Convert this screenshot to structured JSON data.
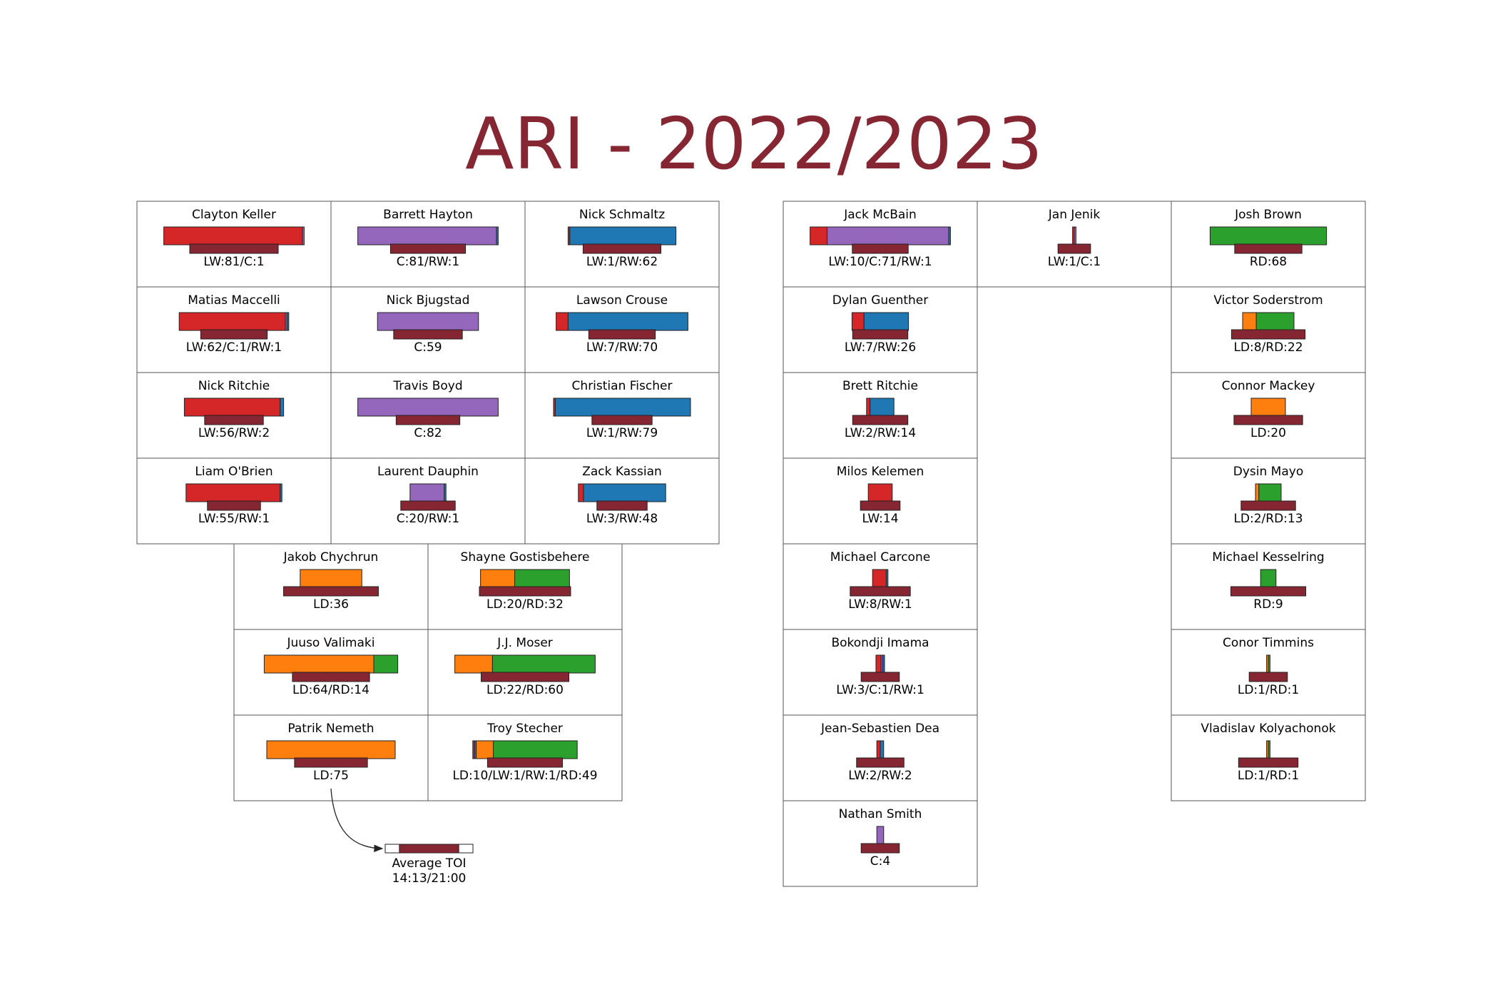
{
  "title": "ARI - 2022/2023",
  "colors": {
    "title": "#862633",
    "toi": "#862633",
    "LW": "#d62728",
    "C": "#9467bd",
    "RW": "#1f77b4",
    "LD": "#ff7f0e",
    "RD": "#2ca02c"
  },
  "legend": {
    "label": "Average TOI",
    "value": "14:13/21:00"
  },
  "chart_data": {
    "type": "bar",
    "title": "ARI - 2022/2023",
    "position_order": [
      "LW",
      "C",
      "RW",
      "LD",
      "RD"
    ],
    "toi_scale_max": "21:00",
    "groups": [
      {
        "name": "forwards",
        "rows": [
          [
            {
              "name": "Clayton Keller",
              "label": "LW:81/C:1",
              "counts": {
                "LW": 81,
                "C": 1
              },
              "toi": "20:50"
            },
            {
              "name": "Barrett Hayton",
              "label": "C:81/RW:1",
              "counts": {
                "C": 81,
                "RW": 1
              },
              "toi": "17:40"
            },
            {
              "name": "Nick Schmaltz",
              "label": "LW:1/RW:62",
              "counts": {
                "LW": 1,
                "RW": 62
              },
              "toi": "18:20"
            }
          ],
          [
            {
              "name": "Matias Maccelli",
              "label": "LW:62/C:1/RW:1",
              "counts": {
                "LW": 62,
                "C": 1,
                "RW": 1
              },
              "toi": "15:40"
            },
            {
              "name": "Nick Bjugstad",
              "label": "C:59",
              "counts": {
                "C": 59
              },
              "toi": "16:10"
            },
            {
              "name": "Lawson Crouse",
              "label": "LW:7/RW:70",
              "counts": {
                "LW": 7,
                "RW": 70
              },
              "toi": "15:40"
            }
          ],
          [
            {
              "name": "Nick Ritchie",
              "label": "LW:56/RW:2",
              "counts": {
                "LW": 56,
                "RW": 2
              },
              "toi": "13:50"
            },
            {
              "name": "Travis Boyd",
              "label": "C:82",
              "counts": {
                "C": 82
              },
              "toi": "15:00"
            },
            {
              "name": "Christian Fischer",
              "label": "LW:1/RW:79",
              "counts": {
                "LW": 1,
                "RW": 79
              },
              "toi": "14:10"
            }
          ],
          [
            {
              "name": "Liam O'Brien",
              "label": "LW:55/RW:1",
              "counts": {
                "LW": 55,
                "RW": 1
              },
              "toi": "12:30"
            },
            {
              "name": "Laurent Dauphin",
              "label": "C:20/RW:1",
              "counts": {
                "C": 20,
                "RW": 1
              },
              "toi": "12:50"
            },
            {
              "name": "Zack Kassian",
              "label": "LW:3/RW:48",
              "counts": {
                "LW": 3,
                "RW": 48
              },
              "toi": "11:50"
            }
          ]
        ]
      },
      {
        "name": "defense",
        "rows": [
          [
            {
              "name": "Jakob Chychrun",
              "label": "LD:36",
              "counts": {
                "LD": 36
              },
              "toi": "22:20"
            },
            {
              "name": "Shayne Gostisbehere",
              "label": "LD:20/RD:32",
              "counts": {
                "LD": 20,
                "RD": 32
              },
              "toi": "21:30"
            }
          ],
          [
            {
              "name": "Juuso Valimaki",
              "label": "LD:64/RD:14",
              "counts": {
                "LD": 64,
                "RD": 14
              },
              "toi": "18:10"
            },
            {
              "name": "J.J. Moser",
              "label": "LD:22/RD:60",
              "counts": {
                "LD": 22,
                "RD": 60
              },
              "toi": "20:40"
            }
          ],
          [
            {
              "name": "Patrik Nemeth",
              "label": "LD:75",
              "counts": {
                "LD": 75
              },
              "toi": "17:10"
            },
            {
              "name": "Troy Stecher",
              "label": "LD:10/LW:1/RW:1/RD:49",
              "counts": {
                "LD": 10,
                "LW": 1,
                "RW": 1,
                "RD": 49
              },
              "toi": "17:40"
            }
          ]
        ]
      },
      {
        "name": "extra-forwards",
        "rows": [
          [
            {
              "name": "Jack McBain",
              "label": "LW:10/C:71/RW:1",
              "counts": {
                "LW": 10,
                "C": 71,
                "RW": 1
              },
              "toi": "13:10"
            }
          ],
          [
            {
              "name": "Dylan Guenther",
              "label": "LW:7/RW:26",
              "counts": {
                "LW": 7,
                "RW": 26
              },
              "toi": "13:00"
            }
          ],
          [
            {
              "name": "Brett Ritchie",
              "label": "LW:2/RW:14",
              "counts": {
                "LW": 2,
                "RW": 14
              },
              "toi": "13:00"
            }
          ],
          [
            {
              "name": "Milos Kelemen",
              "label": "LW:14",
              "counts": {
                "LW": 14
              },
              "toi": "9:20"
            }
          ],
          [
            {
              "name": "Michael Carcone",
              "label": "LW:8/RW:1",
              "counts": {
                "LW": 8,
                "RW": 1
              },
              "toi": "14:10"
            }
          ],
          [
            {
              "name": "Bokondji Imama",
              "label": "LW:3/C:1/RW:1",
              "counts": {
                "LW": 3,
                "C": 1,
                "RW": 1
              },
              "toi": "9:00"
            }
          ],
          [
            {
              "name": "Jean-Sebastien Dea",
              "label": "LW:2/RW:2",
              "counts": {
                "LW": 2,
                "RW": 2
              },
              "toi": "11:10"
            }
          ],
          [
            {
              "name": "Nathan Smith",
              "label": "C:4",
              "counts": {
                "C": 4
              },
              "toi": "9:00"
            }
          ]
        ]
      },
      {
        "name": "extra-forwards-2",
        "rows": [
          [
            {
              "name": "Jan Jenik",
              "label": "LW:1/C:1",
              "counts": {
                "LW": 1,
                "C": 1
              },
              "toi": "7:40"
            }
          ]
        ]
      },
      {
        "name": "extra-defense",
        "rows": [
          [
            {
              "name": "Josh Brown",
              "label": "RD:68",
              "counts": {
                "RD": 68
              },
              "toi": "15:50"
            }
          ],
          [
            {
              "name": "Victor Soderstrom",
              "label": "LD:8/RD:22",
              "counts": {
                "LD": 8,
                "RD": 22
              },
              "toi": "17:20"
            }
          ],
          [
            {
              "name": "Connor Mackey",
              "label": "LD:20",
              "counts": {
                "LD": 20
              },
              "toi": "16:10"
            }
          ],
          [
            {
              "name": "Dysin Mayo",
              "label": "LD:2/RD:13",
              "counts": {
                "LD": 2,
                "RD": 13
              },
              "toi": "12:50"
            }
          ],
          [
            {
              "name": "Michael Kesselring",
              "label": "RD:9",
              "counts": {
                "RD": 9
              },
              "toi": "17:40"
            }
          ],
          [
            {
              "name": "Conor Timmins",
              "label": "LD:1/RD:1",
              "counts": {
                "LD": 1,
                "RD": 1
              },
              "toi": "9:00"
            }
          ],
          [
            {
              "name": "Vladislav Kolyachonok",
              "label": "LD:1/RD:1",
              "counts": {
                "LD": 1,
                "RD": 1
              },
              "toi": "14:00"
            }
          ]
        ]
      }
    ]
  }
}
